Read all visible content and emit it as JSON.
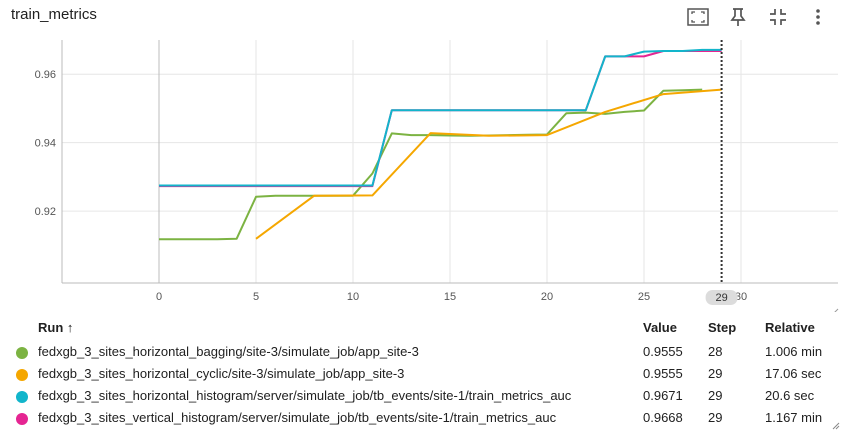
{
  "card": {
    "title": "train_metrics"
  },
  "toolbar": {
    "fullscreen_icon": "fullscreen-icon",
    "pin_icon": "pin-icon",
    "fit_icon": "fit-domain-icon",
    "more_icon": "more-vert-icon"
  },
  "chart_data": {
    "type": "line",
    "title": "",
    "xlabel": "",
    "ylabel": "",
    "xlim": [
      -5,
      35
    ],
    "ylim": [
      0.899,
      0.97
    ],
    "x_ticks": [
      0,
      5,
      10,
      15,
      20,
      25,
      30
    ],
    "y_ticks": [
      0.92,
      0.94,
      0.96
    ],
    "grid": true,
    "hover_step": 29,
    "hover_label": "29",
    "series": [
      {
        "name": "fedxgb_3_sites_horizontal_bagging/site-3/simulate_job/app_site-3",
        "color": "#7cb342",
        "x": [
          0,
          1,
          2,
          3,
          4,
          5,
          6,
          7,
          8,
          9,
          10,
          11,
          12,
          13,
          14,
          15,
          16,
          17,
          18,
          19,
          20,
          21,
          22,
          23,
          24,
          25,
          26,
          27,
          28
        ],
        "y": [
          0.9118,
          0.9118,
          0.9118,
          0.9118,
          0.9119,
          0.9242,
          0.9245,
          0.9245,
          0.9245,
          0.9245,
          0.9245,
          0.931,
          0.9427,
          0.9422,
          0.9422,
          0.9421,
          0.942,
          0.9421,
          0.9422,
          0.9423,
          0.9424,
          0.9486,
          0.9488,
          0.9484,
          0.949,
          0.9494,
          0.9552,
          0.9553,
          0.9555
        ]
      },
      {
        "name": "fedxgb_3_sites_horizontal_cyclic/site-3/simulate_job/app_site-3",
        "color": "#f5a700",
        "x": [
          5,
          8,
          11,
          14,
          17,
          20,
          23,
          26,
          29
        ],
        "y": [
          0.9119,
          0.9245,
          0.9246,
          0.9428,
          0.942,
          0.9422,
          0.949,
          0.9542,
          0.9555
        ]
      },
      {
        "name": "fedxgb_3_sites_vertical_histogram/server/simulate_job/tb_events/site-1/train_metrics_auc",
        "color": "#e52592",
        "x": [
          0,
          1,
          2,
          3,
          4,
          5,
          6,
          7,
          8,
          9,
          10,
          11,
          12,
          13,
          14,
          15,
          16,
          17,
          18,
          19,
          20,
          21,
          22,
          23,
          24,
          25,
          26,
          27,
          28,
          29
        ],
        "y": [
          0.9273,
          0.9273,
          0.9273,
          0.9273,
          0.9273,
          0.9273,
          0.9273,
          0.9273,
          0.9273,
          0.9273,
          0.9273,
          0.9273,
          0.9495,
          0.9495,
          0.9495,
          0.9495,
          0.9495,
          0.9495,
          0.9495,
          0.9495,
          0.9495,
          0.9495,
          0.9495,
          0.9652,
          0.9652,
          0.9652,
          0.9668,
          0.9668,
          0.9668,
          0.9668
        ]
      },
      {
        "name": "fedxgb_3_sites_horizontal_histogram/server/simulate_job/tb_events/site-1/train_metrics_auc",
        "color": "#12b5cb",
        "x": [
          0,
          1,
          2,
          3,
          4,
          5,
          6,
          7,
          8,
          9,
          10,
          11,
          12,
          13,
          14,
          15,
          16,
          17,
          18,
          19,
          20,
          21,
          22,
          23,
          24,
          25,
          26,
          27,
          28,
          29
        ],
        "y": [
          0.9275,
          0.9275,
          0.9275,
          0.9275,
          0.9275,
          0.9275,
          0.9275,
          0.9275,
          0.9275,
          0.9275,
          0.9275,
          0.9275,
          0.9495,
          0.9495,
          0.9495,
          0.9495,
          0.9495,
          0.9495,
          0.9495,
          0.9495,
          0.9495,
          0.9495,
          0.9495,
          0.9652,
          0.9652,
          0.9666,
          0.9668,
          0.9668,
          0.9671,
          0.9671
        ]
      }
    ]
  },
  "runs_table": {
    "headers": {
      "run": "Run ↑",
      "value": "Value",
      "step": "Step",
      "relative": "Relative"
    },
    "rows": [
      {
        "color": "#7cb342",
        "name": "fedxgb_3_sites_horizontal_bagging/site-3/simulate_job/app_site-3",
        "value": "0.9555",
        "step": "28",
        "relative": "1.006 min"
      },
      {
        "color": "#f5a700",
        "name": "fedxgb_3_sites_horizontal_cyclic/site-3/simulate_job/app_site-3",
        "value": "0.9555",
        "step": "29",
        "relative": "17.06 sec"
      },
      {
        "color": "#12b5cb",
        "name": "fedxgb_3_sites_horizontal_histogram/server/simulate_job/tb_events/site-1/train_metrics_auc",
        "value": "0.9671",
        "step": "29",
        "relative": "20.6 sec"
      },
      {
        "color": "#e52592",
        "name": "fedxgb_3_sites_vertical_histogram/server/simulate_job/tb_events/site-1/train_metrics_auc",
        "value": "0.9668",
        "step": "29",
        "relative": "1.167 min"
      }
    ]
  }
}
